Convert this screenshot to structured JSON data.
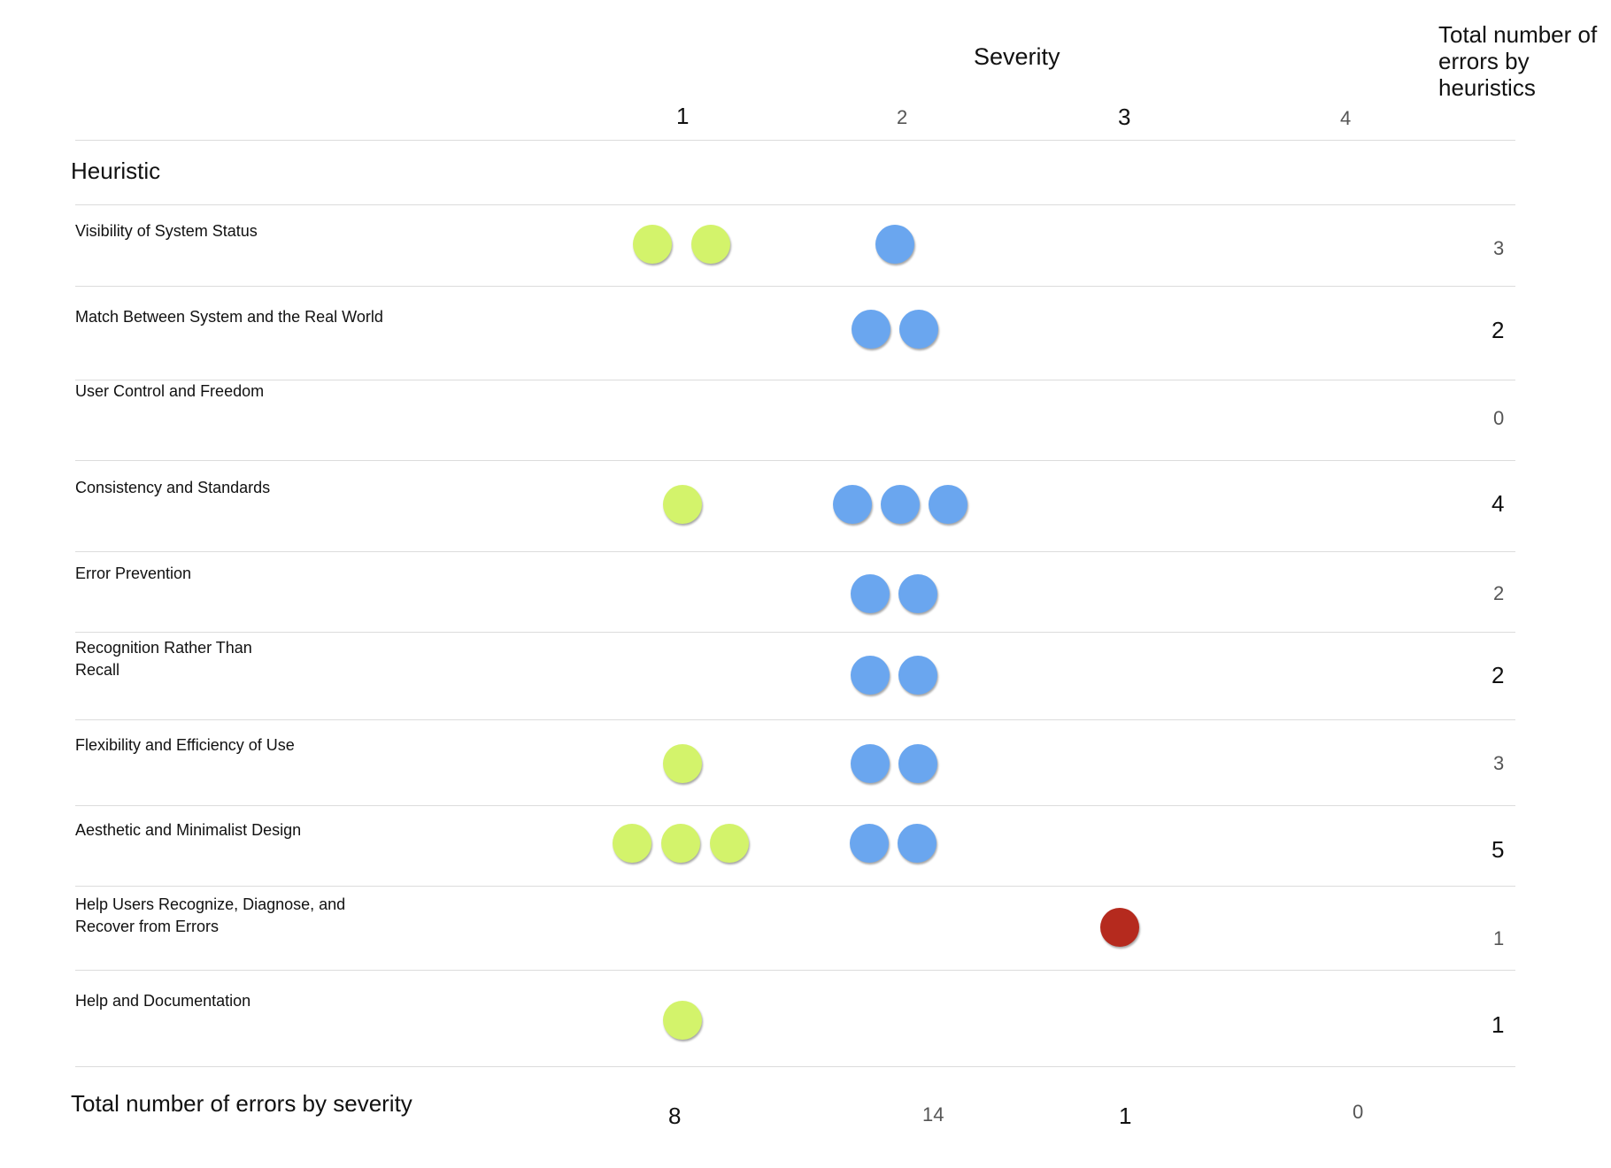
{
  "chart_data": {
    "type": "table",
    "title": "Severity",
    "column_header_total": "Total number of errors by heuristics",
    "row_header": "Heuristic",
    "severity_levels": [
      "1",
      "2",
      "3",
      "4"
    ],
    "rows": [
      {
        "label": "Visibility of System Status",
        "counts": [
          2,
          1,
          0,
          0
        ],
        "total": "3"
      },
      {
        "label": "Match Between System and the Real World",
        "counts": [
          0,
          2,
          0,
          0
        ],
        "total": "2"
      },
      {
        "label": "User Control and Freedom",
        "counts": [
          0,
          0,
          0,
          0
        ],
        "total": "0"
      },
      {
        "label": "Consistency and Standards",
        "counts": [
          1,
          3,
          0,
          0
        ],
        "total": "4"
      },
      {
        "label": "Error Prevention",
        "counts": [
          0,
          2,
          0,
          0
        ],
        "total": "2"
      },
      {
        "label": "Recognition Rather Than Recall",
        "counts": [
          0,
          2,
          0,
          0
        ],
        "total": "2"
      },
      {
        "label": "Flexibility and Efficiency of Use",
        "counts": [
          1,
          2,
          0,
          0
        ],
        "total": "3"
      },
      {
        "label": "Aesthetic and Minimalist Design",
        "counts": [
          3,
          2,
          0,
          0
        ],
        "total": "5"
      },
      {
        "label": "Help Users Recognize, Diagnose, and Recover from Errors",
        "counts": [
          0,
          0,
          1,
          0
        ],
        "total": "1"
      },
      {
        "label": "Help and Documentation",
        "counts": [
          1,
          0,
          0,
          0
        ],
        "total": "1"
      }
    ],
    "footer_label": "Total number of errors by severity",
    "severity_totals": [
      "8",
      "14",
      "1",
      "0"
    ],
    "colors": {
      "severity_1": "#d3f36b",
      "severity_2": "#6aa6ef",
      "severity_3": "#b52a1e",
      "severity_4": "#888888"
    }
  }
}
